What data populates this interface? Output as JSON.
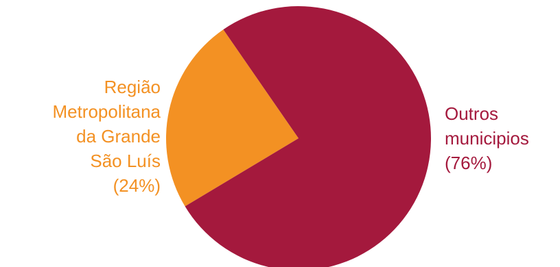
{
  "chart_data": {
    "type": "pie",
    "title": "",
    "slices": [
      {
        "label_lines": [
          "Região",
          "Metropolitana",
          "da Grande",
          "São Luís",
          "(24%)"
        ],
        "value": 24,
        "color": "#F39123"
      },
      {
        "label_lines": [
          "Outros",
          "municipios",
          "(76%)"
        ],
        "value": 76,
        "color": "#A4193D"
      }
    ]
  }
}
